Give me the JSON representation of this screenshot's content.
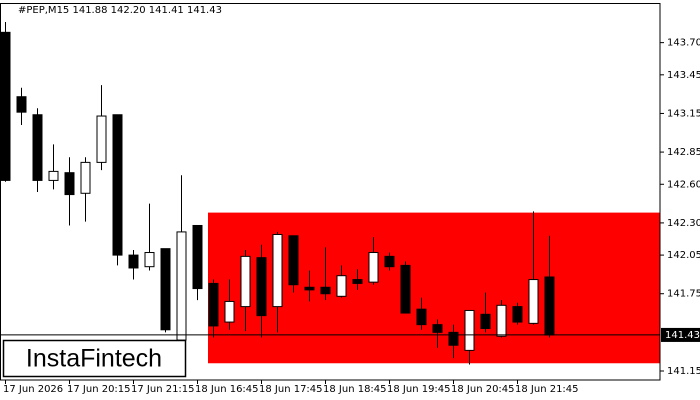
{
  "chart_data": {
    "type": "candlestick",
    "title": "#PEP,M15  141.88 142.20 141.41 141.43",
    "watermark": "InstaFintech",
    "categories": [
      "17 Jun 2026",
      null,
      null,
      null,
      "17 Jun 20:15",
      null,
      null,
      null,
      "17 Jun 21:15",
      null,
      null,
      null,
      "18 Jun 16:45",
      null,
      null,
      null,
      "18 Jun 17:45",
      null,
      null,
      null,
      "18 Jun 18:45",
      null,
      null,
      null,
      "18 Jun 19:45",
      null,
      null,
      null,
      "18 Jun 20:45",
      null,
      null,
      null,
      "18 Jun 21:45",
      null,
      null
    ],
    "open": [
      143.78,
      143.28,
      143.14,
      142.63,
      142.69,
      142.53,
      142.77,
      143.14,
      142.05,
      141.96,
      142.1,
      141.39,
      142.28,
      141.83,
      141.53,
      141.65,
      142.03,
      141.65,
      142.2,
      141.8,
      141.8,
      141.73,
      141.86,
      141.84,
      142.04,
      141.97,
      141.63,
      141.51,
      141.45,
      141.31,
      141.59,
      141.42,
      141.65,
      141.52,
      141.88
    ],
    "high": [
      143.86,
      143.35,
      143.19,
      142.91,
      142.81,
      142.81,
      143.37,
      143.14,
      142.09,
      142.45,
      142.1,
      142.67,
      142.28,
      141.86,
      141.86,
      142.09,
      142.13,
      142.23,
      142.2,
      141.93,
      142.11,
      141.97,
      141.94,
      142.19,
      142.07,
      142.0,
      141.72,
      141.55,
      141.51,
      141.62,
      141.76,
      141.7,
      141.68,
      142.39,
      142.2
    ],
    "low": [
      142.62,
      143.06,
      142.54,
      142.56,
      142.28,
      142.31,
      142.71,
      141.97,
      141.86,
      141.93,
      141.45,
      141.35,
      141.7,
      141.41,
      141.47,
      141.46,
      141.41,
      141.45,
      141.76,
      141.69,
      141.7,
      141.72,
      141.78,
      141.82,
      141.93,
      141.6,
      141.47,
      141.33,
      141.25,
      141.2,
      141.45,
      141.41,
      141.51,
      141.51,
      141.41
    ],
    "close": [
      142.63,
      143.16,
      142.63,
      142.7,
      142.52,
      142.77,
      143.13,
      142.05,
      141.95,
      142.07,
      141.47,
      142.23,
      141.79,
      141.5,
      141.69,
      142.04,
      141.58,
      142.21,
      141.82,
      141.78,
      141.75,
      141.89,
      141.83,
      142.07,
      141.96,
      141.6,
      141.51,
      141.45,
      141.35,
      141.62,
      141.48,
      141.66,
      141.53,
      141.86,
      141.43
    ],
    "up_color": "#ffffff",
    "down_color": "#000000",
    "zone": {
      "top": 142.38,
      "bottom": 141.21,
      "color": "#ff0000"
    },
    "current_price": 141.43,
    "ylim": [
      141.08,
      144.0
    ],
    "yticks": [
      141.15,
      141.75,
      142.05,
      {
        "value": 142.3,
        "label": "142.30"
      },
      {
        "value": 142.6,
        "label": "142.60"
      },
      142.85,
      143.15,
      143.45,
      {
        "value": 143.7,
        "label": "143.70"
      }
    ]
  }
}
